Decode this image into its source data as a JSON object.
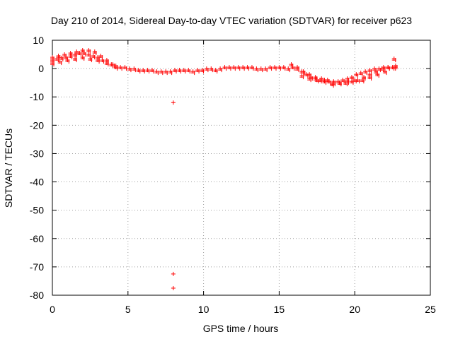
{
  "chart_data": {
    "type": "scatter",
    "title": "Day 210 of 2014, Sidereal Day-to-day VTEC variation (SDTVAR) for receiver p623",
    "xlabel": "GPS time / hours",
    "ylabel": "SDTVAR / TECUs",
    "xlim": [
      0,
      25
    ],
    "ylim": [
      -80,
      10
    ],
    "xticks": [
      0,
      5,
      10,
      15,
      20,
      25
    ],
    "yticks": [
      10,
      0,
      -10,
      -20,
      -30,
      -40,
      -50,
      -60,
      -70,
      -80
    ],
    "grid": true,
    "marker": "+",
    "color": "#ff0000",
    "series": [
      {
        "name": "SDTVAR",
        "x": [
          0.0,
          0.3,
          0.6,
          0.9,
          1.2,
          1.5,
          1.8,
          2.1,
          2.4,
          2.7,
          3.0,
          3.3,
          3.6,
          3.9,
          4.2,
          4.5,
          4.8,
          5.1,
          5.4,
          5.7,
          6.0,
          6.3,
          6.6,
          6.9,
          7.2,
          7.5,
          7.8,
          8.1,
          8.4,
          8.7,
          9.0,
          9.3,
          9.6,
          9.9,
          10.2,
          10.5,
          10.8,
          11.1,
          11.4,
          11.7,
          12.0,
          12.3,
          12.6,
          12.9,
          13.2,
          13.5,
          13.8,
          14.1,
          14.4,
          14.7,
          15.0,
          15.3,
          15.6,
          15.9,
          16.2,
          16.5,
          16.8,
          17.1,
          17.4,
          17.7,
          18.0,
          18.3,
          18.6,
          18.9,
          19.2,
          19.5,
          19.8,
          20.1,
          20.4,
          20.7,
          21.0,
          21.3,
          21.6,
          21.9,
          22.2,
          22.5,
          22.7,
          0.0,
          0.4,
          0.8,
          1.2,
          1.6,
          2.0,
          2.4,
          2.8,
          3.2,
          3.6,
          4.0,
          15.8,
          16.2,
          16.6,
          17.0,
          17.4,
          17.8,
          18.2,
          18.6,
          19.0,
          19.4,
          19.8,
          20.2,
          20.6,
          21.0,
          21.4,
          21.8,
          22.2,
          22.6,
          0.0,
          0.5,
          1.0,
          1.5,
          2.0,
          2.5,
          3.0,
          16.5,
          17.0,
          17.5,
          18.0,
          18.5,
          19.0,
          19.5,
          20.0,
          20.5,
          21.0,
          21.5,
          22.0,
          22.6,
          4.2,
          8.0,
          8.0,
          8.0
        ],
        "y": [
          3.0,
          3.5,
          3.8,
          4.0,
          4.5,
          5.0,
          5.5,
          5.5,
          5.0,
          4.5,
          4.0,
          3.0,
          2.0,
          1.5,
          1.0,
          0.5,
          0.5,
          0.0,
          0.0,
          -0.5,
          -0.5,
          -0.5,
          -0.5,
          -1.0,
          -1.0,
          -1.0,
          -1.0,
          -0.5,
          -0.5,
          -0.5,
          -0.5,
          -1.0,
          -0.5,
          -0.5,
          0.0,
          0.0,
          -0.5,
          0.0,
          0.5,
          0.5,
          0.5,
          0.5,
          0.5,
          0.5,
          0.5,
          0.0,
          0.0,
          0.0,
          0.5,
          0.5,
          0.5,
          0.5,
          0.0,
          0.5,
          0.0,
          -1.0,
          -2.0,
          -3.0,
          -3.5,
          -4.0,
          -4.0,
          -4.5,
          -5.0,
          -4.5,
          -4.0,
          -3.5,
          -3.0,
          -2.0,
          -1.5,
          -1.0,
          -0.5,
          0.0,
          0.0,
          0.5,
          0.5,
          0.5,
          1.0,
          4.0,
          4.5,
          5.0,
          5.5,
          6.0,
          6.5,
          6.5,
          6.0,
          4.5,
          3.0,
          1.5,
          1.5,
          0.5,
          -1.0,
          -2.0,
          -3.0,
          -3.5,
          -4.0,
          -4.5,
          -5.0,
          -5.0,
          -4.5,
          -4.0,
          -3.0,
          -2.0,
          -1.0,
          0.0,
          0.5,
          0.5,
          2.0,
          2.5,
          3.0,
          3.5,
          4.0,
          3.5,
          3.0,
          -2.5,
          -3.5,
          -4.0,
          -4.5,
          -5.5,
          -5.0,
          -4.5,
          -4.0,
          -4.0,
          -3.0,
          -2.0,
          -1.0,
          3.5,
          0.5,
          -12.0,
          -72.5,
          -77.5
        ]
      }
    ]
  }
}
